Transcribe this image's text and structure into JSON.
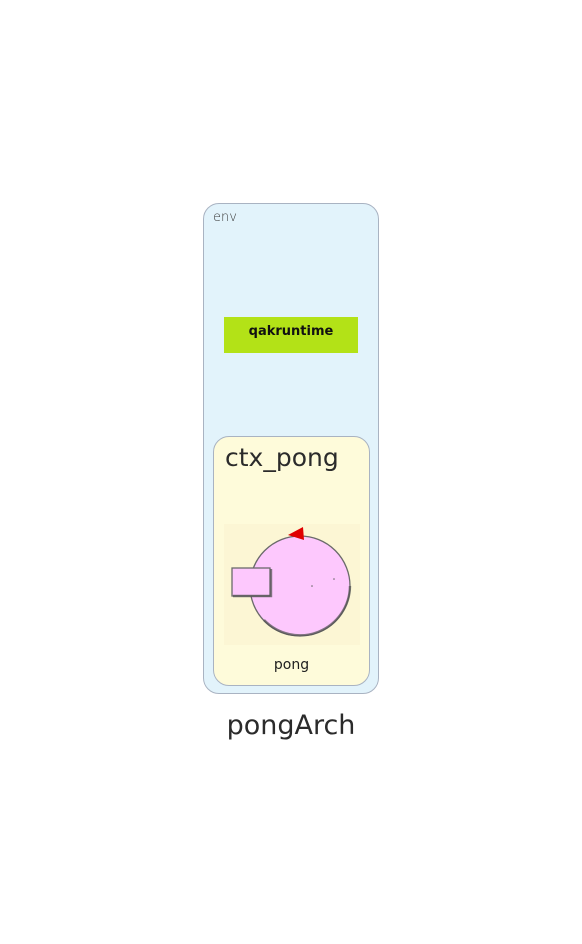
{
  "diagram": {
    "title": "pongArch",
    "env_cluster": {
      "label": "env",
      "fill_color": "#e2f3fb",
      "nodes": [
        {
          "label": "qakruntime",
          "fill_color": "#b3e217"
        }
      ]
    },
    "context_cluster": {
      "label": "ctx_pong",
      "fill_color": "#fefbda",
      "actors": [
        {
          "label": "pong",
          "icon": "actor-icon",
          "icon_color": "#fdc8fd",
          "accent_color": "#e00000"
        }
      ]
    }
  }
}
